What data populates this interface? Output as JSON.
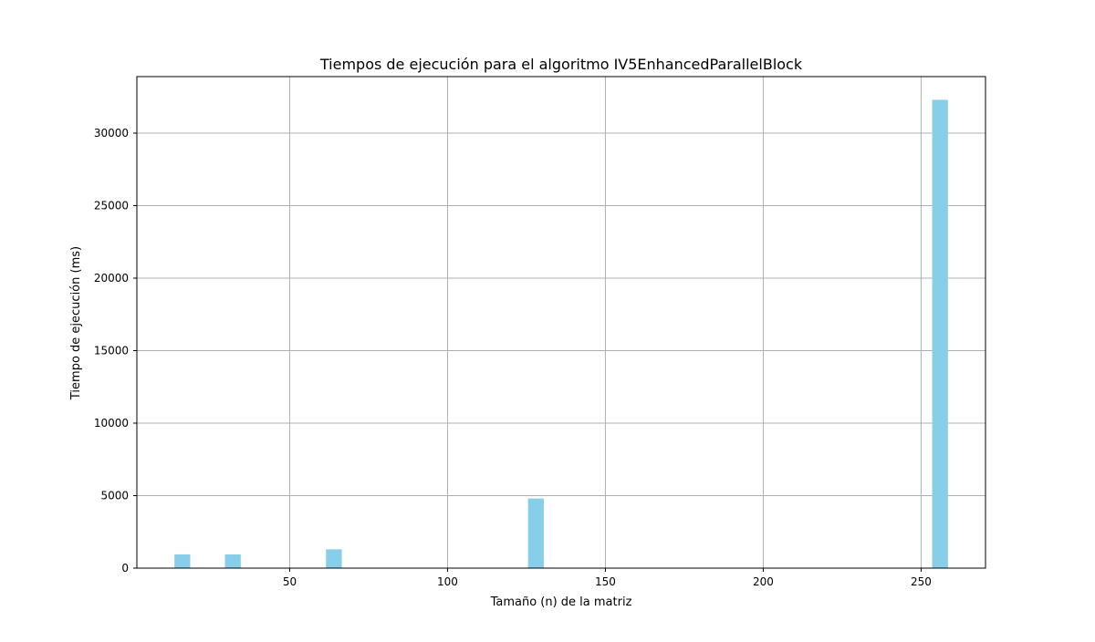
{
  "chart_data": {
    "type": "bar",
    "title": "Tiempos de ejecución para el algoritmo IV5EnhancedParallelBlock",
    "xlabel": "Tamaño (n) de la matriz",
    "ylabel": "Tiempo de ejecución (ms)",
    "x": [
      16,
      32,
      64,
      128,
      256
    ],
    "values": [
      950,
      950,
      1300,
      4800,
      32300
    ],
    "bar_width": 5,
    "xlim": [
      1.6,
      270.4
    ],
    "ylim": [
      0,
      33900
    ],
    "xticks": [
      50,
      100,
      150,
      200,
      250
    ],
    "yticks": [
      0,
      5000,
      10000,
      15000,
      20000,
      25000,
      30000
    ],
    "xtick_labels": [
      "50",
      "100",
      "150",
      "200",
      "250"
    ],
    "ytick_labels": [
      "0",
      "5000",
      "10000",
      "15000",
      "20000",
      "25000",
      "30000"
    ],
    "grid": true,
    "bar_color": "#87CEEB",
    "grid_color": "#b0b0b0"
  }
}
